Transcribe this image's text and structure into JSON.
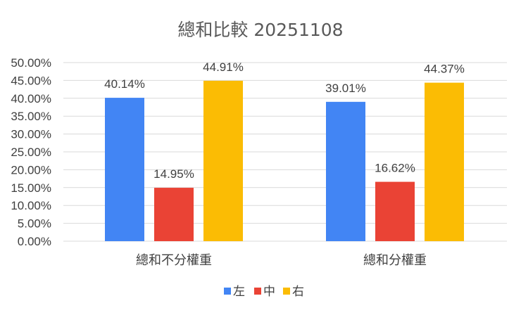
{
  "chart_data": {
    "type": "bar",
    "title": "總和比較 20251108",
    "xlabel": "",
    "ylabel": "",
    "ylim": [
      0,
      0.5
    ],
    "tick_step": 0.05,
    "y_ticks": [
      "0.00%",
      "5.00%",
      "10.00%",
      "15.00%",
      "20.00%",
      "25.00%",
      "30.00%",
      "35.00%",
      "40.00%",
      "45.00%",
      "50.00%"
    ],
    "categories": [
      "總和不分權重",
      "總和分權重"
    ],
    "series": [
      {
        "name": "左",
        "color": "#4285f4",
        "values": [
          0.4014,
          0.3901
        ],
        "labels": [
          "40.14%",
          "39.01%"
        ]
      },
      {
        "name": "中",
        "color": "#ea4335",
        "values": [
          0.1495,
          0.1662
        ],
        "labels": [
          "14.95%",
          "16.62%"
        ]
      },
      {
        "name": "右",
        "color": "#fbbc04",
        "values": [
          0.4491,
          0.4437
        ],
        "labels": [
          "44.91%",
          "44.37%"
        ]
      }
    ],
    "grid": true,
    "legend": "bottom"
  }
}
